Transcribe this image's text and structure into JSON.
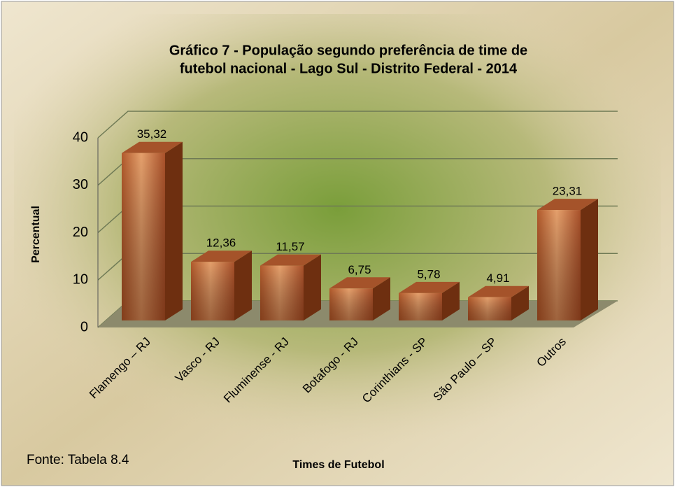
{
  "chart_data": {
    "type": "bar3d",
    "title": [
      "Gráfico 7 - População segundo preferência de time de",
      "futebol nacional - Lago Sul - Distrito Federal - 2014"
    ],
    "y_label": "Percentual",
    "x_label": "Times de Futebol",
    "source": "Fonte: Tabela 8.4",
    "categories": [
      "Flamengo – RJ",
      "Vasco - RJ",
      "Fluminense - RJ",
      "Botafogo - RJ",
      "Corinthians - SP",
      "São Paulo – SP",
      "Outros"
    ],
    "values": [
      35.32,
      12.36,
      11.57,
      6.75,
      5.78,
      4.91,
      23.31
    ],
    "value_labels": [
      "35,32",
      "12,36",
      "11,57",
      "6,75",
      "5,78",
      "4,91",
      "23,31"
    ],
    "ylim": [
      0,
      40
    ],
    "yticks": [
      0,
      10,
      20,
      30,
      40
    ],
    "grid": true,
    "color": "#c46a3a"
  }
}
